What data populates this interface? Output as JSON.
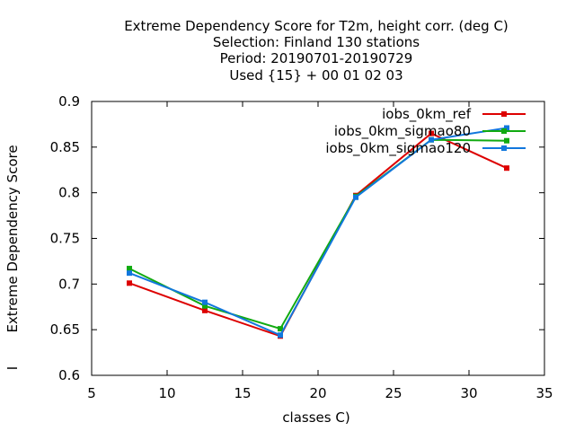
{
  "chart_data": {
    "type": "line",
    "title_lines": [
      "Extreme Dependency Score  for T2m, height corr. (deg C)",
      "Selection: Finland     130 stations",
      "Period: 20190701-20190729",
      "Used {15} + 00 01 02 03"
    ],
    "xlabel": "classes C)",
    "ylabel": "Extreme Dependency Score",
    "ylabel_extra": "I",
    "xlim": [
      5,
      35
    ],
    "ylim": [
      0.6,
      0.9
    ],
    "xticks": [
      5,
      10,
      15,
      20,
      25,
      30,
      35
    ],
    "yticks": [
      0.6,
      0.65,
      0.7,
      0.75,
      0.8,
      0.85,
      0.9
    ],
    "ytick_labels": [
      "0.6",
      "0.65",
      "0.7",
      "0.75",
      "0.8",
      "0.85",
      "0.9"
    ],
    "grid": false,
    "legend_position": "top-right",
    "x": [
      7.5,
      12.5,
      17.5,
      22.5,
      27.5,
      32.5
    ],
    "series": [
      {
        "name": "iobs_0km_ref",
        "color": "#dd0000",
        "values": [
          0.701,
          0.671,
          0.643,
          0.797,
          0.865,
          0.827
        ]
      },
      {
        "name": "iobs_0km_sigmao80",
        "color": "#11aa11",
        "values": [
          0.717,
          0.676,
          0.651,
          0.796,
          0.858,
          0.857
        ]
      },
      {
        "name": "iobs_0km_sigmao120",
        "color": "#1177dd",
        "values": [
          0.712,
          0.68,
          0.644,
          0.795,
          0.858,
          0.871
        ]
      }
    ]
  }
}
